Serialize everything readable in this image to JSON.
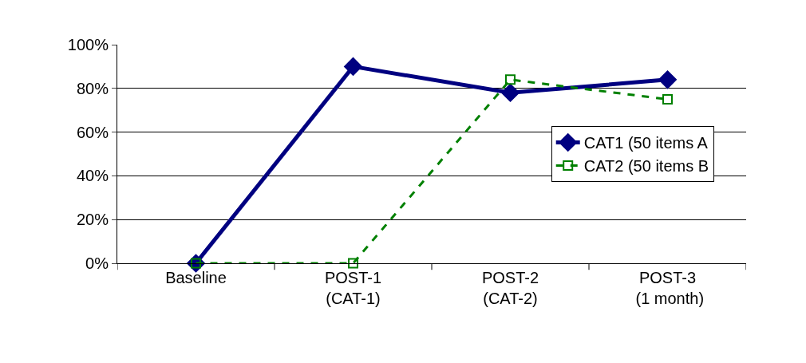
{
  "chart_data": {
    "type": "line",
    "categories": [
      "Baseline",
      "POST-1\n(CAT-1)",
      "POST-2\n(CAT-2)",
      "POST-3\n (1 month)"
    ],
    "series": [
      {
        "name": "CAT1 (50 items A",
        "color": "#000080",
        "values": [
          0,
          90,
          78,
          84
        ],
        "marker": "diamond",
        "line_style": "solid"
      },
      {
        "name": "CAT2 (50 items B",
        "color": "#008000",
        "values": [
          0,
          0,
          84,
          75
        ],
        "marker": "square",
        "line_style": "dashed"
      }
    ],
    "ylim": [
      0,
      100
    ],
    "yticks": [
      {
        "value": 0,
        "label": "0%"
      },
      {
        "value": 20,
        "label": "20%"
      },
      {
        "value": 40,
        "label": "40%"
      },
      {
        "value": 60,
        "label": "60%"
      },
      {
        "value": 80,
        "label": "80%"
      },
      {
        "value": 100,
        "label": "100%"
      }
    ],
    "grid": "y",
    "legend": "right"
  }
}
